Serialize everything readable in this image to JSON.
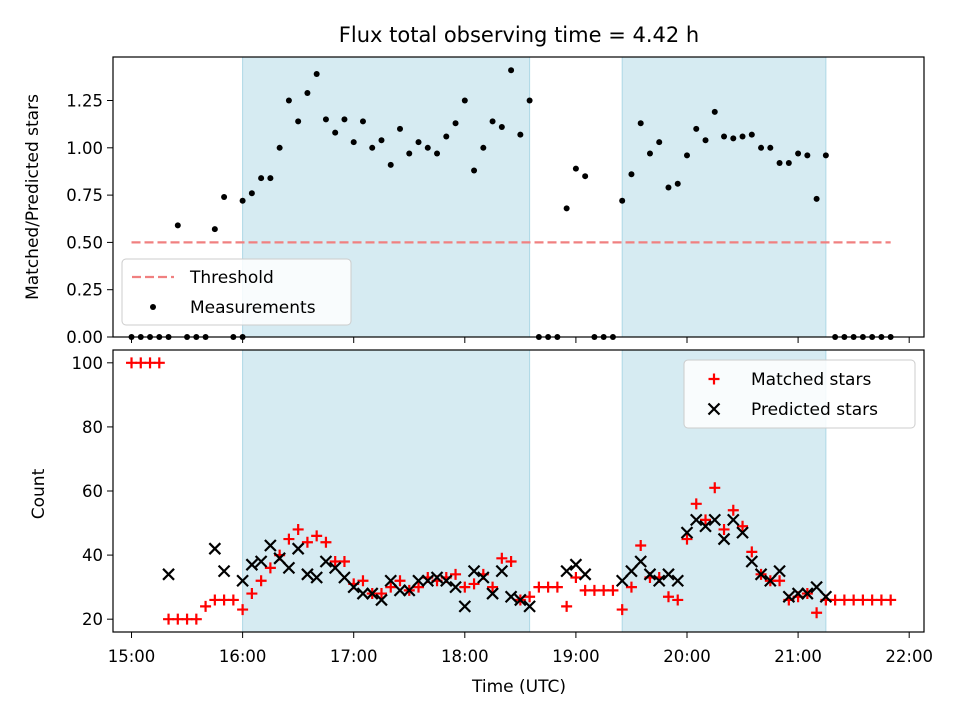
{
  "chart_data": [
    {
      "type": "scatter",
      "title": "Flux total observing time = 4.42 h",
      "xlabel": "",
      "ylabel": "Matched/Predicted stars",
      "xlim": [
        "14:50",
        "22:08"
      ],
      "ylim": [
        0,
        1.48
      ],
      "yticks": [
        "0.00",
        "0.25",
        "0.50",
        "0.75",
        "1.00",
        "1.25"
      ],
      "shaded_intervals": [
        [
          "16:00",
          "18:35"
        ],
        [
          "19:25",
          "21:15"
        ]
      ],
      "legend_position": "lower left",
      "legend": [
        "Threshold",
        "Measurements"
      ],
      "series": [
        {
          "name": "Threshold",
          "style": "dashed-line",
          "color": "#f08080",
          "points": [
            [
              "15:00",
              0.5
            ],
            [
              "21:50",
              0.5
            ]
          ]
        },
        {
          "name": "Measurements",
          "style": "dot",
          "color": "#000000",
          "points": [
            [
              "15:00",
              0
            ],
            [
              "15:05",
              0
            ],
            [
              "15:10",
              0
            ],
            [
              "15:15",
              0
            ],
            [
              "15:20",
              0
            ],
            [
              "15:25",
              0.59
            ],
            [
              "15:30",
              0
            ],
            [
              "15:35",
              0
            ],
            [
              "15:40",
              0
            ],
            [
              "15:45",
              0.57
            ],
            [
              "15:50",
              0.74
            ],
            [
              "15:55",
              0
            ],
            [
              "16:00",
              0
            ],
            [
              "16:00",
              0.72
            ],
            [
              "16:05",
              0.76
            ],
            [
              "16:10",
              0.84
            ],
            [
              "16:15",
              0.84
            ],
            [
              "16:20",
              1.0
            ],
            [
              "16:25",
              1.25
            ],
            [
              "16:30",
              1.14
            ],
            [
              "16:35",
              1.29
            ],
            [
              "16:40",
              1.39
            ],
            [
              "16:45",
              1.15
            ],
            [
              "16:50",
              1.08
            ],
            [
              "16:55",
              1.15
            ],
            [
              "17:00",
              1.03
            ],
            [
              "17:05",
              1.14
            ],
            [
              "17:10",
              1.0
            ],
            [
              "17:15",
              1.04
            ],
            [
              "17:20",
              0.91
            ],
            [
              "17:25",
              1.1
            ],
            [
              "17:30",
              0.97
            ],
            [
              "17:35",
              1.03
            ],
            [
              "17:40",
              1.0
            ],
            [
              "17:45",
              0.97
            ],
            [
              "17:50",
              1.06
            ],
            [
              "17:55",
              1.13
            ],
            [
              "18:00",
              1.25
            ],
            [
              "18:05",
              0.88
            ],
            [
              "18:10",
              1.0
            ],
            [
              "18:15",
              1.14
            ],
            [
              "18:20",
              1.11
            ],
            [
              "18:25",
              1.41
            ],
            [
              "18:30",
              1.07
            ],
            [
              "18:35",
              1.25
            ],
            [
              "18:40",
              0
            ],
            [
              "18:45",
              0
            ],
            [
              "18:50",
              0
            ],
            [
              "18:55",
              0.68
            ],
            [
              "19:00",
              0.89
            ],
            [
              "19:05",
              0.85
            ],
            [
              "19:10",
              0
            ],
            [
              "19:15",
              0
            ],
            [
              "19:20",
              0
            ],
            [
              "19:25",
              0.72
            ],
            [
              "19:30",
              0.86
            ],
            [
              "19:35",
              1.13
            ],
            [
              "19:40",
              0.97
            ],
            [
              "19:45",
              1.03
            ],
            [
              "19:50",
              0.79
            ],
            [
              "19:55",
              0.81
            ],
            [
              "20:00",
              0.96
            ],
            [
              "20:05",
              1.1
            ],
            [
              "20:10",
              1.04
            ],
            [
              "20:15",
              1.19
            ],
            [
              "20:20",
              1.06
            ],
            [
              "20:25",
              1.05
            ],
            [
              "20:30",
              1.06
            ],
            [
              "20:35",
              1.07
            ],
            [
              "20:40",
              1.0
            ],
            [
              "20:45",
              1.0
            ],
            [
              "20:50",
              0.92
            ],
            [
              "20:55",
              0.92
            ],
            [
              "21:00",
              0.97
            ],
            [
              "21:05",
              0.96
            ],
            [
              "21:10",
              0.73
            ],
            [
              "21:15",
              0.96
            ],
            [
              "21:20",
              0
            ],
            [
              "21:25",
              0
            ],
            [
              "21:30",
              0
            ],
            [
              "21:35",
              0
            ],
            [
              "21:40",
              0
            ],
            [
              "21:45",
              0
            ],
            [
              "21:50",
              0
            ]
          ]
        }
      ]
    },
    {
      "type": "scatter",
      "title": "",
      "xlabel": "Time (UTC)",
      "ylabel": "Count",
      "xlim": [
        "14:50",
        "22:08"
      ],
      "ylim": [
        16,
        104
      ],
      "xticks": [
        "15:00",
        "16:00",
        "17:00",
        "18:00",
        "19:00",
        "20:00",
        "21:00",
        "22:00"
      ],
      "yticks": [
        "20",
        "40",
        "60",
        "80",
        "100"
      ],
      "shaded_intervals": [
        [
          "16:00",
          "18:35"
        ],
        [
          "19:25",
          "21:15"
        ]
      ],
      "legend_position": "upper right",
      "legend": [
        "Matched stars",
        "Predicted stars"
      ],
      "series": [
        {
          "name": "Matched stars",
          "marker": "+",
          "color": "#ff0000",
          "points": [
            [
              "15:00",
              100
            ],
            [
              "15:05",
              100
            ],
            [
              "15:10",
              100
            ],
            [
              "15:15",
              100
            ],
            [
              "15:20",
              20
            ],
            [
              "15:25",
              20
            ],
            [
              "15:30",
              20
            ],
            [
              "15:35",
              20
            ],
            [
              "15:40",
              24
            ],
            [
              "15:45",
              26
            ],
            [
              "15:50",
              26
            ],
            [
              "15:55",
              26
            ],
            [
              "16:00",
              23
            ],
            [
              "16:05",
              28
            ],
            [
              "16:10",
              32
            ],
            [
              "16:15",
              36
            ],
            [
              "16:20",
              40
            ],
            [
              "16:25",
              45
            ],
            [
              "16:30",
              48
            ],
            [
              "16:35",
              44
            ],
            [
              "16:40",
              46
            ],
            [
              "16:45",
              44
            ],
            [
              "16:50",
              38
            ],
            [
              "16:55",
              38
            ],
            [
              "17:00",
              31
            ],
            [
              "17:05",
              32
            ],
            [
              "17:10",
              28
            ],
            [
              "17:15",
              28
            ],
            [
              "17:20",
              30
            ],
            [
              "17:25",
              32
            ],
            [
              "17:30",
              29
            ],
            [
              "17:35",
              30
            ],
            [
              "17:40",
              33
            ],
            [
              "17:45",
              32
            ],
            [
              "17:50",
              33
            ],
            [
              "17:55",
              34
            ],
            [
              "18:00",
              30
            ],
            [
              "18:05",
              31
            ],
            [
              "18:10",
              34
            ],
            [
              "18:15",
              30
            ],
            [
              "18:20",
              39
            ],
            [
              "18:25",
              38
            ],
            [
              "18:30",
              26
            ],
            [
              "18:35",
              27
            ],
            [
              "18:40",
              30
            ],
            [
              "18:45",
              30
            ],
            [
              "18:50",
              30
            ],
            [
              "18:55",
              24
            ],
            [
              "19:00",
              33
            ],
            [
              "19:05",
              29
            ],
            [
              "19:10",
              29
            ],
            [
              "19:15",
              29
            ],
            [
              "19:20",
              29
            ],
            [
              "19:25",
              23
            ],
            [
              "19:30",
              30
            ],
            [
              "19:35",
              43
            ],
            [
              "19:40",
              33
            ],
            [
              "19:45",
              33
            ],
            [
              "19:50",
              27
            ],
            [
              "19:55",
              26
            ],
            [
              "20:00",
              45
            ],
            [
              "20:05",
              56
            ],
            [
              "20:10",
              51
            ],
            [
              "20:15",
              61
            ],
            [
              "20:20",
              48
            ],
            [
              "20:25",
              54
            ],
            [
              "20:30",
              49
            ],
            [
              "20:35",
              41
            ],
            [
              "20:40",
              34
            ],
            [
              "20:45",
              32
            ],
            [
              "20:50",
              32
            ],
            [
              "20:55",
              26
            ],
            [
              "21:00",
              27
            ],
            [
              "21:05",
              28
            ],
            [
              "21:10",
              22
            ],
            [
              "21:15",
              26
            ],
            [
              "21:20",
              26
            ],
            [
              "21:25",
              26
            ],
            [
              "21:30",
              26
            ],
            [
              "21:35",
              26
            ],
            [
              "21:40",
              26
            ],
            [
              "21:45",
              26
            ],
            [
              "21:50",
              26
            ]
          ]
        },
        {
          "name": "Predicted stars",
          "marker": "x",
          "color": "#000000",
          "points": [
            [
              "15:20",
              34
            ],
            [
              "15:45",
              42
            ],
            [
              "15:50",
              35
            ],
            [
              "16:00",
              32
            ],
            [
              "16:05",
              37
            ],
            [
              "16:10",
              38
            ],
            [
              "16:15",
              43
            ],
            [
              "16:20",
              39
            ],
            [
              "16:25",
              36
            ],
            [
              "16:30",
              42
            ],
            [
              "16:35",
              34
            ],
            [
              "16:40",
              33
            ],
            [
              "16:45",
              38
            ],
            [
              "16:50",
              36
            ],
            [
              "16:55",
              33
            ],
            [
              "17:00",
              30
            ],
            [
              "17:05",
              28
            ],
            [
              "17:10",
              28
            ],
            [
              "17:15",
              26
            ],
            [
              "17:20",
              32
            ],
            [
              "17:25",
              29
            ],
            [
              "17:30",
              29
            ],
            [
              "17:35",
              32
            ],
            [
              "17:40",
              32
            ],
            [
              "17:45",
              33
            ],
            [
              "17:50",
              32
            ],
            [
              "17:55",
              30
            ],
            [
              "18:00",
              24
            ],
            [
              "18:05",
              35
            ],
            [
              "18:10",
              33
            ],
            [
              "18:15",
              28
            ],
            [
              "18:20",
              35
            ],
            [
              "18:25",
              27
            ],
            [
              "18:30",
              26
            ],
            [
              "18:35",
              24
            ],
            [
              "18:55",
              35
            ],
            [
              "19:00",
              37
            ],
            [
              "19:05",
              34
            ],
            [
              "19:25",
              32
            ],
            [
              "19:30",
              35
            ],
            [
              "19:35",
              38
            ],
            [
              "19:40",
              34
            ],
            [
              "19:45",
              32
            ],
            [
              "19:50",
              34
            ],
            [
              "19:55",
              32
            ],
            [
              "20:00",
              47
            ],
            [
              "20:05",
              51
            ],
            [
              "20:10",
              49
            ],
            [
              "20:15",
              51
            ],
            [
              "20:20",
              45
            ],
            [
              "20:25",
              51
            ],
            [
              "20:30",
              47
            ],
            [
              "20:35",
              38
            ],
            [
              "20:40",
              34
            ],
            [
              "20:45",
              32
            ],
            [
              "20:50",
              35
            ],
            [
              "20:55",
              27
            ],
            [
              "21:00",
              28
            ],
            [
              "21:05",
              28
            ],
            [
              "21:10",
              30
            ],
            [
              "21:15",
              27
            ]
          ]
        }
      ]
    }
  ]
}
